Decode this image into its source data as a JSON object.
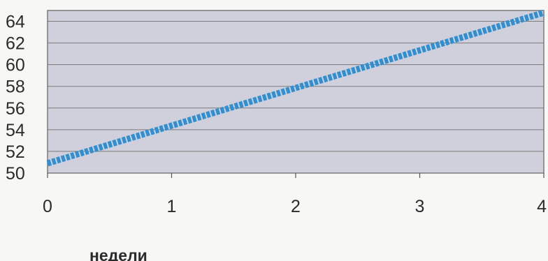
{
  "chart_data": {
    "type": "line",
    "title": "",
    "xlabel": "недели",
    "ylabel": "",
    "xlim": [
      0,
      4
    ],
    "ylim": [
      50,
      65
    ],
    "x_ticks": [
      0,
      1,
      2,
      3,
      4
    ],
    "y_ticks": [
      50,
      52,
      54,
      56,
      58,
      60,
      62,
      64
    ],
    "grid": "horizontal",
    "legend": "none",
    "series": [
      {
        "x": [
          0,
          4
        ],
        "y": [
          50.9,
          64.8
        ],
        "color": "#2f8fd0",
        "style": "dashed"
      }
    ],
    "colors": {
      "plot_background": "#cfd0dc",
      "grid": "#7a7a7a"
    }
  }
}
